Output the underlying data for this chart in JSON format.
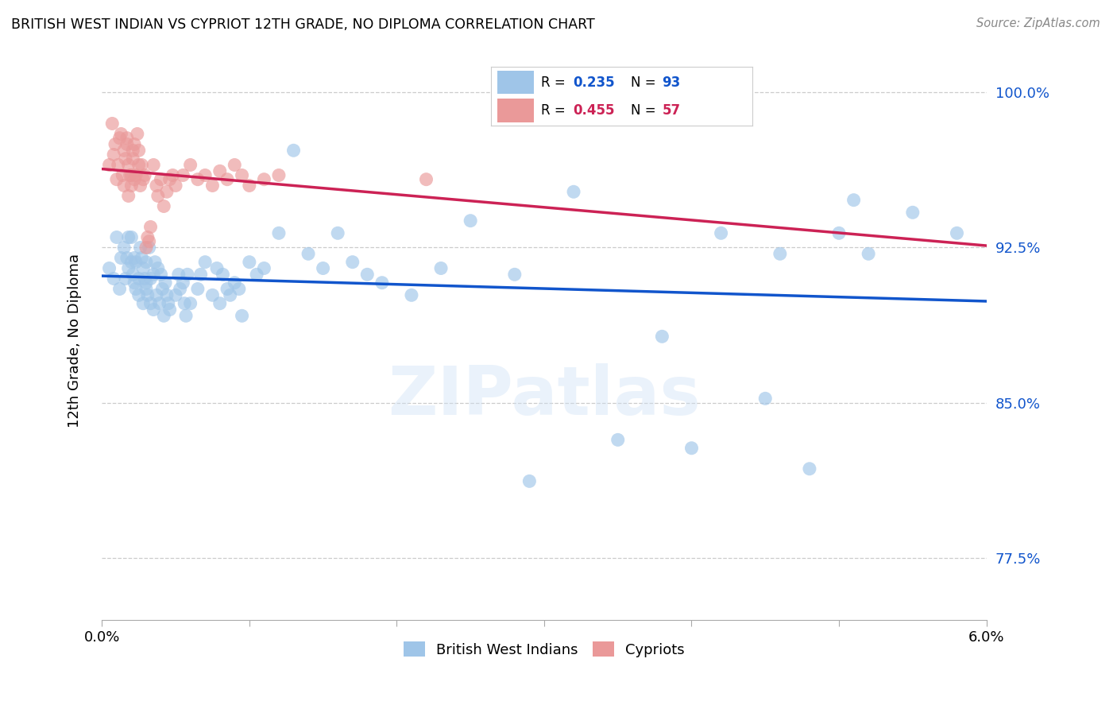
{
  "title": "BRITISH WEST INDIAN VS CYPRIOT 12TH GRADE, NO DIPLOMA CORRELATION CHART",
  "source": "Source: ZipAtlas.com",
  "ylabel": "12th Grade, No Diploma",
  "xmin": 0.0,
  "xmax": 6.0,
  "ymin": 74.5,
  "ymax": 101.5,
  "yticks": [
    77.5,
    85.0,
    92.5,
    100.0
  ],
  "ytick_labels": [
    "77.5%",
    "85.0%",
    "92.5%",
    "100.0%"
  ],
  "blue_R": 0.235,
  "blue_N": 93,
  "pink_R": 0.455,
  "pink_N": 57,
  "blue_color": "#9fc5e8",
  "pink_color": "#ea9999",
  "blue_line_color": "#1155cc",
  "pink_line_color": "#cc2255",
  "legend_blue_label": "British West Indians",
  "legend_pink_label": "Cypriots",
  "blue_scatter_x": [
    0.05,
    0.08,
    0.1,
    0.12,
    0.13,
    0.15,
    0.16,
    0.17,
    0.18,
    0.18,
    0.2,
    0.2,
    0.21,
    0.22,
    0.22,
    0.23,
    0.23,
    0.25,
    0.25,
    0.26,
    0.27,
    0.28,
    0.28,
    0.29,
    0.3,
    0.3,
    0.3,
    0.31,
    0.32,
    0.33,
    0.33,
    0.35,
    0.35,
    0.36,
    0.37,
    0.38,
    0.39,
    0.4,
    0.41,
    0.42,
    0.43,
    0.44,
    0.45,
    0.46,
    0.5,
    0.52,
    0.53,
    0.55,
    0.56,
    0.57,
    0.58,
    0.6,
    0.65,
    0.67,
    0.7,
    0.75,
    0.78,
    0.8,
    0.82,
    0.85,
    0.87,
    0.9,
    0.93,
    0.95,
    1.0,
    1.05,
    1.1,
    1.2,
    1.3,
    1.4,
    1.5,
    1.6,
    1.7,
    1.8,
    1.9,
    2.1,
    2.3,
    2.5,
    2.8,
    3.2,
    3.5,
    4.0,
    4.2,
    4.5,
    4.8,
    5.0,
    5.2,
    5.5,
    5.8,
    3.8,
    4.6,
    5.1,
    2.9
  ],
  "blue_scatter_y": [
    91.5,
    91.0,
    93.0,
    90.5,
    92.0,
    92.5,
    91.0,
    92.0,
    93.0,
    91.5,
    91.8,
    93.0,
    91.2,
    92.0,
    90.8,
    90.5,
    91.8,
    91.0,
    90.2,
    92.5,
    92.0,
    91.5,
    89.8,
    91.0,
    90.5,
    91.8,
    90.8,
    90.2,
    92.5,
    91.0,
    89.8,
    89.5,
    91.2,
    91.8,
    90.2,
    91.5,
    89.8,
    91.2,
    90.5,
    89.2,
    90.8,
    90.2,
    89.8,
    89.5,
    90.2,
    91.2,
    90.5,
    90.8,
    89.8,
    89.2,
    91.2,
    89.8,
    90.5,
    91.2,
    91.8,
    90.2,
    91.5,
    89.8,
    91.2,
    90.5,
    90.2,
    90.8,
    90.5,
    89.2,
    91.8,
    91.2,
    91.5,
    93.2,
    97.2,
    92.2,
    91.5,
    93.2,
    91.8,
    91.2,
    90.8,
    90.2,
    91.5,
    93.8,
    91.2,
    95.2,
    83.2,
    82.8,
    93.2,
    85.2,
    81.8,
    93.2,
    92.2,
    94.2,
    93.2,
    88.2,
    92.2,
    94.8,
    81.2
  ],
  "pink_scatter_x": [
    0.05,
    0.07,
    0.08,
    0.09,
    0.1,
    0.11,
    0.12,
    0.13,
    0.14,
    0.15,
    0.15,
    0.16,
    0.17,
    0.17,
    0.18,
    0.18,
    0.19,
    0.2,
    0.2,
    0.21,
    0.21,
    0.22,
    0.22,
    0.23,
    0.24,
    0.25,
    0.25,
    0.26,
    0.27,
    0.28,
    0.29,
    0.3,
    0.31,
    0.32,
    0.33,
    0.35,
    0.37,
    0.38,
    0.4,
    0.42,
    0.44,
    0.46,
    0.48,
    0.5,
    0.55,
    0.6,
    0.65,
    0.7,
    0.75,
    0.8,
    0.85,
    0.9,
    0.95,
    1.0,
    1.1,
    1.2,
    2.2
  ],
  "pink_scatter_y": [
    96.5,
    98.5,
    97.0,
    97.5,
    95.8,
    96.5,
    97.8,
    98.0,
    96.0,
    95.5,
    97.2,
    96.8,
    97.5,
    97.8,
    95.0,
    96.5,
    96.0,
    95.5,
    96.0,
    96.8,
    97.2,
    97.5,
    95.8,
    96.0,
    98.0,
    97.2,
    96.5,
    95.5,
    96.5,
    95.8,
    96.0,
    92.5,
    93.0,
    92.8,
    93.5,
    96.5,
    95.5,
    95.0,
    95.8,
    94.5,
    95.2,
    95.8,
    96.0,
    95.5,
    96.0,
    96.5,
    95.8,
    96.0,
    95.5,
    96.2,
    95.8,
    96.5,
    96.0,
    95.5,
    95.8,
    96.0,
    95.8
  ]
}
